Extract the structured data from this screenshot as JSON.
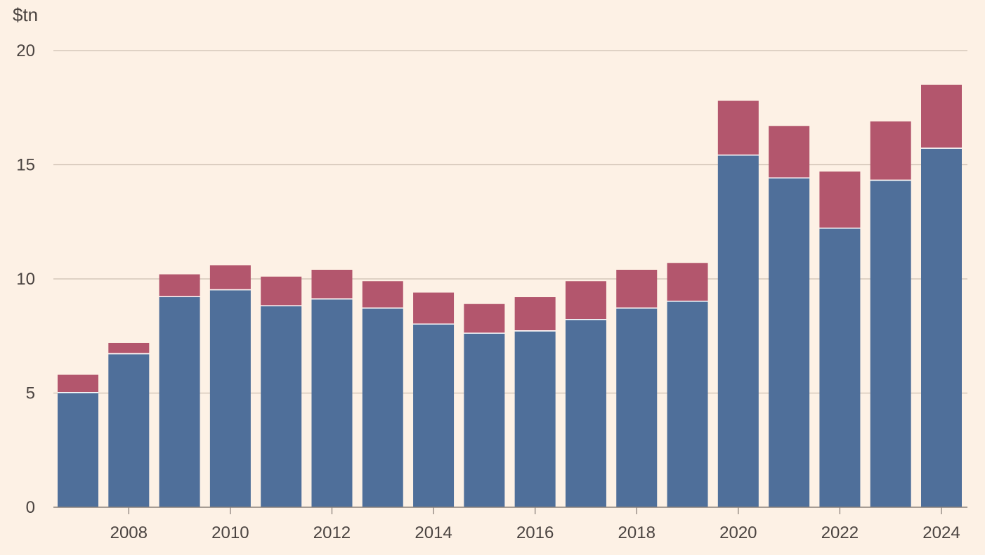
{
  "chart_data": {
    "type": "bar",
    "stacked": true,
    "ylabel": "$tn",
    "ylim": [
      0,
      20
    ],
    "y_ticks": [
      0,
      5,
      10,
      15,
      20
    ],
    "x_tick_labels": [
      "2008",
      "2010",
      "2012",
      "2014",
      "2016",
      "2018",
      "2020",
      "2022",
      "2024"
    ],
    "grid": "horizontal",
    "categories": [
      2007,
      2008,
      2009,
      2010,
      2011,
      2012,
      2013,
      2014,
      2015,
      2016,
      2017,
      2018,
      2019,
      2020,
      2021,
      2022,
      2023,
      2024
    ],
    "series": [
      {
        "color": "#4f6f9a",
        "values": [
          5.0,
          6.7,
          9.2,
          9.5,
          8.8,
          9.1,
          8.7,
          8.0,
          7.6,
          7.7,
          8.2,
          8.7,
          9.0,
          15.4,
          14.4,
          12.2,
          14.3,
          15.7
        ]
      },
      {
        "color": "#b3566d",
        "values": [
          0.8,
          0.5,
          1.0,
          1.1,
          1.3,
          1.3,
          1.2,
          1.4,
          1.3,
          1.5,
          1.7,
          1.7,
          1.7,
          2.4,
          2.3,
          2.5,
          2.6,
          2.8
        ]
      }
    ]
  }
}
